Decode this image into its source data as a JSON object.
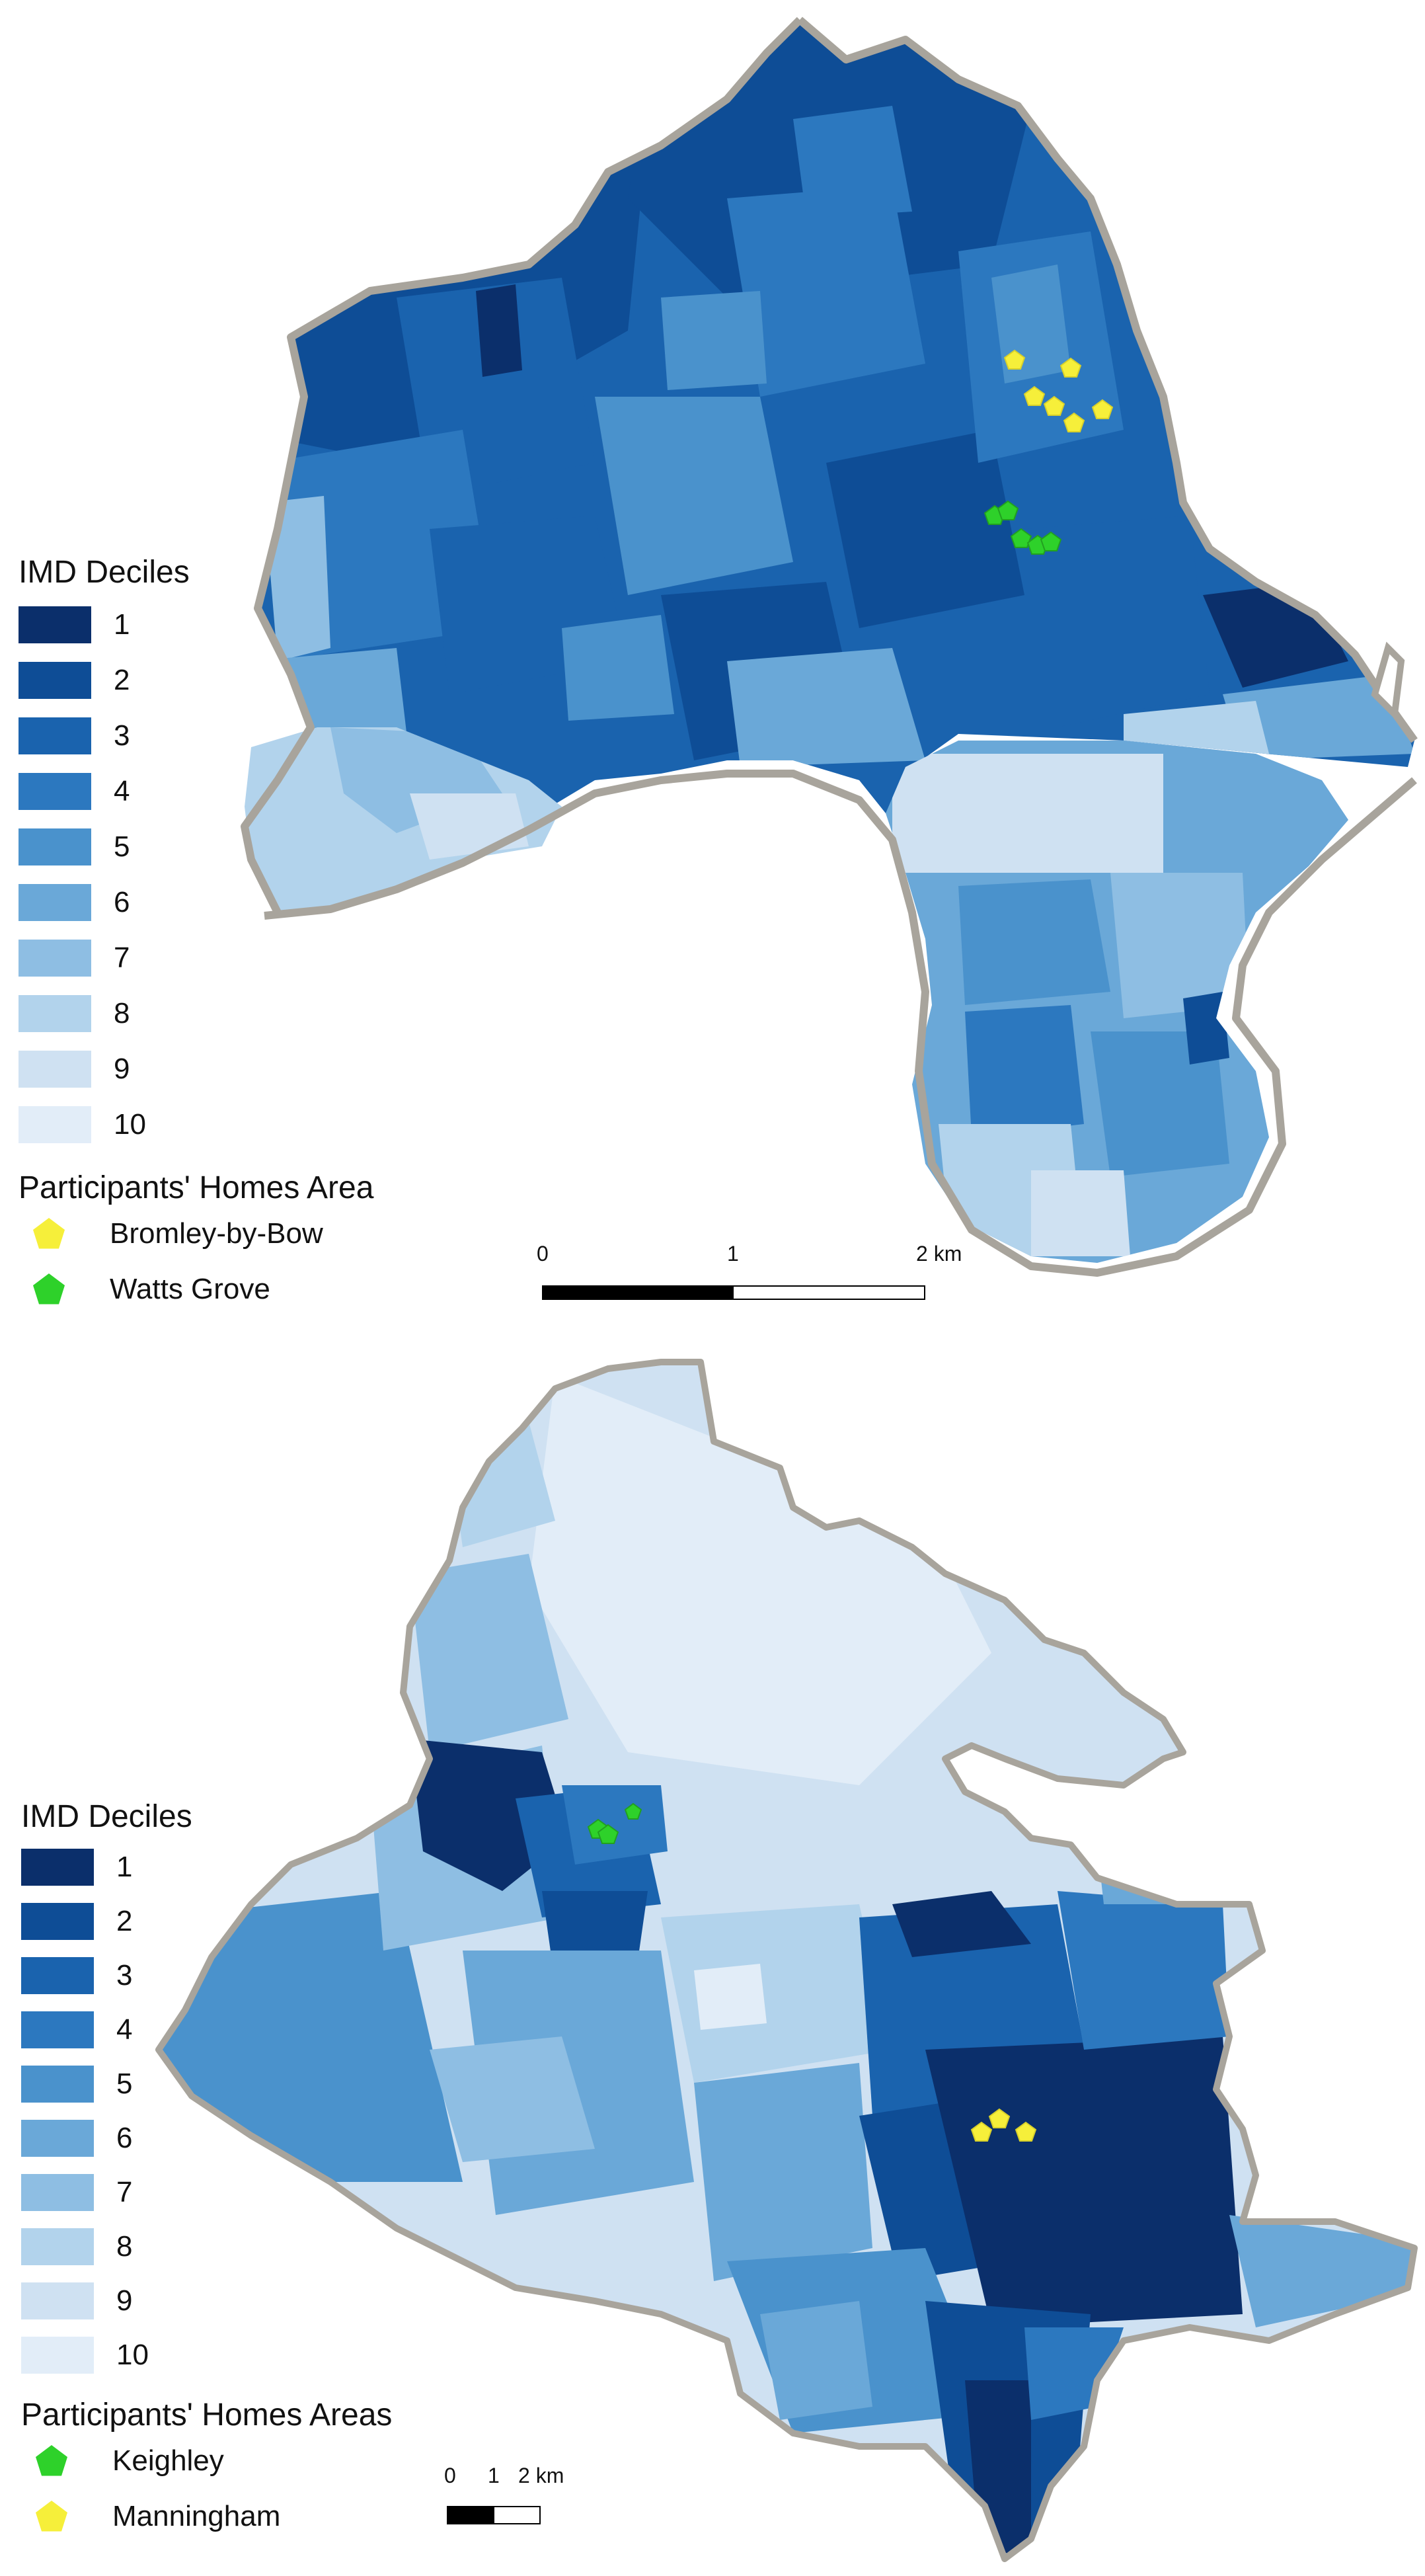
{
  "map1": {
    "legend_title": "IMD Deciles",
    "deciles": [
      {
        "label": "1",
        "color": "#0b2f6b"
      },
      {
        "label": "2",
        "color": "#0e4d96"
      },
      {
        "label": "3",
        "color": "#1a63ae"
      },
      {
        "label": "4",
        "color": "#2c78bf"
      },
      {
        "label": "5",
        "color": "#4a92cc"
      },
      {
        "label": "6",
        "color": "#6aa8d8"
      },
      {
        "label": "7",
        "color": "#8ebee3"
      },
      {
        "label": "8",
        "color": "#b2d3ec"
      },
      {
        "label": "9",
        "color": "#cfe1f2"
      },
      {
        "label": "10",
        "color": "#e2edf8"
      }
    ],
    "homes_title": "Participants' Homes Area",
    "homes": [
      {
        "label": "Bromley-by-Bow",
        "color": "#f6ef3a",
        "icon": "yellow-pentagon-icon"
      },
      {
        "label": "Watts Grove",
        "color": "#2ed12a",
        "icon": "green-pentagon-icon"
      }
    ],
    "scale": {
      "labels": [
        "0",
        "1",
        "2 km"
      ]
    }
  },
  "map2": {
    "legend_title": "IMD Deciles",
    "deciles": [
      {
        "label": "1",
        "color": "#0b2f6b"
      },
      {
        "label": "2",
        "color": "#0e4d96"
      },
      {
        "label": "3",
        "color": "#1a63ae"
      },
      {
        "label": "4",
        "color": "#2c78bf"
      },
      {
        "label": "5",
        "color": "#4a92cc"
      },
      {
        "label": "6",
        "color": "#6aa8d8"
      },
      {
        "label": "7",
        "color": "#8ebee3"
      },
      {
        "label": "8",
        "color": "#b2d3ec"
      },
      {
        "label": "9",
        "color": "#cfe1f2"
      },
      {
        "label": "10",
        "color": "#e2edf8"
      }
    ],
    "homes_title": "Participants' Homes Areas",
    "homes": [
      {
        "label": "Keighley",
        "color": "#2ed12a",
        "icon": "green-pentagon-icon"
      },
      {
        "label": "Manningham",
        "color": "#f6ef3a",
        "icon": "yellow-pentagon-icon"
      }
    ],
    "scale": {
      "labels": [
        "0",
        "1",
        "2 km"
      ]
    }
  }
}
